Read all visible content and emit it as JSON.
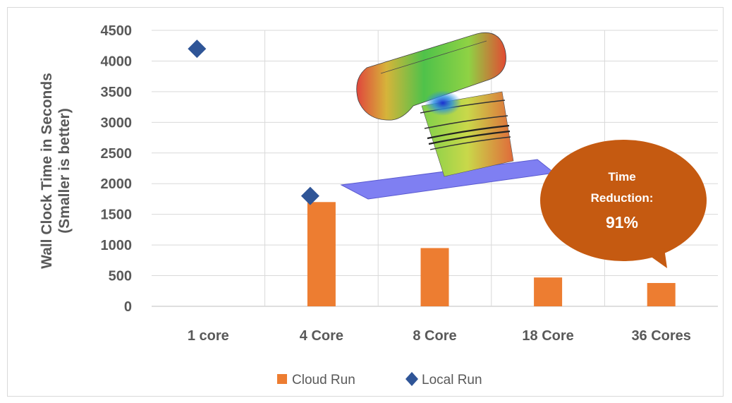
{
  "chart_data": {
    "type": "bar",
    "categories": [
      "1 core",
      "4 Core",
      "8 Core",
      "18 Core",
      "36 Cores"
    ],
    "series": [
      {
        "name": "Cloud Run",
        "kind": "bar",
        "color": "#ed7d31",
        "values": [
          null,
          1700,
          950,
          470,
          380
        ]
      },
      {
        "name": "Local Run",
        "kind": "marker",
        "marker": "diamond",
        "color": "#2f5597",
        "values": [
          4200,
          1800,
          null,
          null,
          null
        ]
      }
    ],
    "ylabel": [
      "Wall Clock Time in Seconds",
      "(Smaller is better)"
    ],
    "ylim": [
      0,
      4500
    ],
    "yticks": [
      0,
      500,
      1000,
      1500,
      2000,
      2500,
      3000,
      3500,
      4000,
      4500
    ],
    "grid": true,
    "legend": "bottom",
    "annotation": {
      "lines": [
        "Time",
        "Reduction:",
        "91%"
      ],
      "shape": "speech-bubble",
      "color": "#c55a11"
    },
    "illustration": "3d-part-stress-render"
  }
}
